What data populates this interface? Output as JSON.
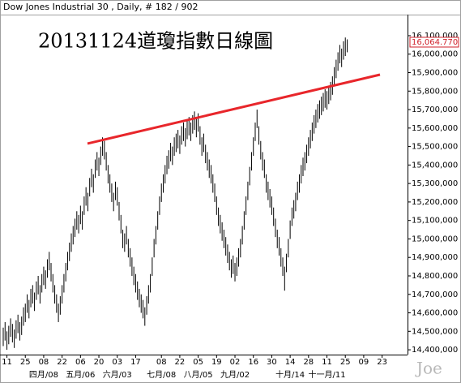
{
  "chart_data": {
    "type": "ohlc",
    "header": "Dow Jones Industrial 30 , Daily, # 182 / 902",
    "title": "20131124道瓊指數日線圖",
    "watermark": "Joe",
    "color": "#000000",
    "ylim": [
      14374000,
      16214000
    ],
    "yticks": [
      {
        "value": 16100000,
        "label": "16,100,000"
      },
      {
        "value": 16000000,
        "label": "16,000,000"
      },
      {
        "value": 15900000,
        "label": "15,900,000"
      },
      {
        "value": 15800000,
        "label": "15,800,000"
      },
      {
        "value": 15700000,
        "label": "15,700,000"
      },
      {
        "value": 15600000,
        "label": "15,600,000"
      },
      {
        "value": 15500000,
        "label": "15,500,000"
      },
      {
        "value": 15400000,
        "label": "15,400,000"
      },
      {
        "value": 15300000,
        "label": "15,300,000"
      },
      {
        "value": 15200000,
        "label": "15,200,000"
      },
      {
        "value": 15100000,
        "label": "15,100,000"
      },
      {
        "value": 15000000,
        "label": "15,000,000"
      },
      {
        "value": 14900000,
        "label": "14,900,000"
      },
      {
        "value": 14800000,
        "label": "14,800,000"
      },
      {
        "value": 14700000,
        "label": "14,700,000"
      },
      {
        "value": 14600000,
        "label": "14,600,000"
      },
      {
        "value": 14500000,
        "label": "14,500,000"
      },
      {
        "value": 14400000,
        "label": "14,400,000"
      }
    ],
    "last_price": {
      "value": 16064770,
      "label": "16,064.770",
      "color": "#d0202a"
    },
    "trendline": {
      "color": "#e8262b",
      "values": [
        15516000,
        15889000
      ]
    },
    "categories": [
      null,
      null,
      "11",
      null,
      null,
      null,
      null,
      null,
      null,
      null,
      null,
      null,
      "25",
      null,
      null,
      null,
      null,
      null,
      null,
      null,
      null,
      null,
      "08",
      null,
      null,
      null,
      null,
      null,
      null,
      null,
      null,
      null,
      "22",
      null,
      null,
      null,
      null,
      null,
      null,
      null,
      null,
      null,
      "06",
      null,
      null,
      null,
      null,
      null,
      null,
      null,
      null,
      null,
      "20",
      null,
      null,
      null,
      null,
      null,
      null,
      null,
      null,
      null,
      "03",
      null,
      null,
      null,
      null,
      null,
      null,
      null,
      null,
      null,
      "17",
      null,
      null,
      null,
      null,
      null,
      null,
      null,
      null,
      null,
      null,
      null,
      null,
      null,
      "08",
      null,
      null,
      null,
      null,
      null,
      null,
      null,
      null,
      null,
      "22",
      null,
      null,
      null,
      null,
      null,
      null,
      null,
      null,
      null,
      "05",
      null,
      null,
      null,
      null,
      null,
      null,
      null,
      null,
      null,
      "19",
      null,
      null,
      null,
      null,
      null,
      null,
      null,
      null,
      null,
      "02",
      null,
      null,
      null,
      null,
      null,
      null,
      null,
      null,
      null,
      "16",
      null,
      null,
      null,
      null,
      null,
      null,
      null,
      null,
      null,
      "30",
      null,
      null,
      null,
      null,
      null,
      null,
      null,
      null,
      null,
      "14",
      null,
      null,
      null,
      null,
      null,
      null,
      null,
      null,
      null,
      "28",
      null,
      null,
      null,
      null,
      null,
      null,
      null,
      null,
      null,
      "11",
      null,
      null,
      null,
      null,
      null,
      null,
      null,
      null,
      null,
      "25",
      null,
      null,
      null,
      null,
      null,
      null,
      null,
      null,
      null,
      "09",
      null,
      null,
      null,
      null,
      null,
      null,
      null,
      null,
      null,
      "23",
      null
    ],
    "month_labels": [
      null,
      null,
      null,
      null,
      null,
      null,
      null,
      null,
      null,
      null,
      null,
      null,
      null,
      null,
      null,
      null,
      null,
      null,
      null,
      null,
      null,
      null,
      "四月/08",
      null,
      null,
      null,
      null,
      null,
      null,
      null,
      null,
      null,
      null,
      null,
      null,
      null,
      null,
      null,
      null,
      null,
      null,
      null,
      "五月/06",
      null,
      null,
      null,
      null,
      null,
      null,
      null,
      null,
      null,
      null,
      null,
      null,
      null,
      null,
      null,
      null,
      null,
      null,
      null,
      "六月/03",
      null,
      null,
      null,
      null,
      null,
      null,
      null,
      null,
      null,
      null,
      null,
      null,
      null,
      null,
      null,
      null,
      null,
      null,
      null,
      null,
      null,
      null,
      null,
      "七月/08",
      null,
      null,
      null,
      null,
      null,
      null,
      null,
      null,
      null,
      null,
      null,
      null,
      null,
      null,
      null,
      null,
      null,
      null,
      null,
      "八月/05",
      null,
      null,
      null,
      null,
      null,
      null,
      null,
      null,
      null,
      null,
      null,
      null,
      null,
      null,
      null,
      null,
      null,
      null,
      null,
      "九月/02",
      null,
      null,
      null,
      null,
      null,
      null,
      null,
      null,
      null,
      null,
      null,
      null,
      null,
      null,
      null,
      null,
      null,
      null,
      null,
      null,
      null,
      null,
      null,
      null,
      null,
      null,
      null,
      null,
      null,
      "十月/14",
      null,
      null,
      null,
      null,
      null,
      null,
      null,
      null,
      null,
      null,
      null,
      null,
      null,
      null,
      null,
      null,
      null,
      null,
      null,
      "十一月/11",
      null,
      null,
      null,
      null,
      null,
      null,
      null,
      null,
      null,
      null,
      null,
      null,
      null,
      null,
      null,
      null,
      null,
      null,
      null,
      null,
      null,
      null,
      null,
      null,
      null,
      null,
      null,
      null,
      null,
      null,
      null
    ],
    "high": [
      14520000,
      14550000,
      14500000,
      14530000,
      14570000,
      14540000,
      14510000,
      14560000,
      14590000,
      14550000,
      14580000,
      14630000,
      14650000,
      14700000,
      14670000,
      14730000,
      14750000,
      14710000,
      14770000,
      14800000,
      14750000,
      14810000,
      14850000,
      14830000,
      14890000,
      14930000,
      14870000,
      14810000,
      14750000,
      14700000,
      14650000,
      14690000,
      14750000,
      14810000,
      14870000,
      14930000,
      14980000,
      15030000,
      15070000,
      15110000,
      15150000,
      15130000,
      15180000,
      15150000,
      15230000,
      15280000,
      15250000,
      15330000,
      15380000,
      15350000,
      15430000,
      15470000,
      15440000,
      15500000,
      15550000,
      15530000,
      15470000,
      15400000,
      15350000,
      15300000,
      15250000,
      15310000,
      15280000,
      15200000,
      15130000,
      15050000,
      15030000,
      15070000,
      15000000,
      14950000,
      14900000,
      14850000,
      14810000,
      14770000,
      14730000,
      14700000,
      14670000,
      14630000,
      14690000,
      14750000,
      14810000,
      14900000,
      15000000,
      15070000,
      15150000,
      15230000,
      15300000,
      15350000,
      15400000,
      15450000,
      15480000,
      15520000,
      15500000,
      15550000,
      15570000,
      15590000,
      15560000,
      15610000,
      15630000,
      15600000,
      15640000,
      15660000,
      15630000,
      15670000,
      15690000,
      15650000,
      15680000,
      15610000,
      15550000,
      15570000,
      15510000,
      15470000,
      15430000,
      15400000,
      15350000,
      15300000,
      15230000,
      15170000,
      15130000,
      15090000,
      15050000,
      15010000,
      14970000,
      14930000,
      14890000,
      14910000,
      14870000,
      14900000,
      14950000,
      15000000,
      15070000,
      15150000,
      15230000,
      15310000,
      15390000,
      15470000,
      15550000,
      15630000,
      15700000,
      15610000,
      15530000,
      15470000,
      15430000,
      15350000,
      15310000,
      15270000,
      15230000,
      15170000,
      15110000,
      15050000,
      15010000,
      14950000,
      14900000,
      14850000,
      14920000,
      15000000,
      15100000,
      15170000,
      15210000,
      15250000,
      15310000,
      15350000,
      15400000,
      15440000,
      15470000,
      15510000,
      15550000,
      15590000,
      15630000,
      15670000,
      15700000,
      15730000,
      15750000,
      15770000,
      15790000,
      15810000,
      15800000,
      15830000,
      15850000,
      15880000,
      15930000,
      15970000,
      16010000,
      16050000,
      16030000,
      16070000,
      16090000,
      16080000,
      null,
      null,
      null,
      null,
      null,
      null,
      null,
      null,
      null,
      null,
      null,
      null,
      null,
      null,
      null,
      null,
      null,
      null,
      null,
      null
    ],
    "low": [
      14420000,
      14450000,
      14400000,
      14430000,
      14470000,
      14440000,
      14410000,
      14460000,
      14490000,
      14450000,
      14480000,
      14530000,
      14550000,
      14600000,
      14570000,
      14630000,
      14650000,
      14610000,
      14670000,
      14700000,
      14650000,
      14710000,
      14750000,
      14730000,
      14790000,
      14830000,
      14770000,
      14710000,
      14650000,
      14600000,
      14550000,
      14590000,
      14650000,
      14710000,
      14770000,
      14830000,
      14880000,
      14930000,
      14970000,
      15010000,
      15050000,
      15030000,
      15080000,
      15050000,
      15130000,
      15180000,
      15150000,
      15230000,
      15280000,
      15250000,
      15330000,
      15370000,
      15340000,
      15400000,
      15450000,
      15430000,
      15370000,
      15300000,
      15250000,
      15200000,
      15150000,
      15210000,
      15180000,
      15100000,
      15030000,
      14950000,
      14930000,
      14970000,
      14900000,
      14850000,
      14800000,
      14750000,
      14710000,
      14670000,
      14630000,
      14600000,
      14570000,
      14530000,
      14590000,
      14650000,
      14710000,
      14800000,
      14900000,
      14970000,
      15050000,
      15130000,
      15200000,
      15250000,
      15300000,
      15350000,
      15380000,
      15420000,
      15400000,
      15450000,
      15470000,
      15490000,
      15460000,
      15510000,
      15530000,
      15500000,
      15540000,
      15560000,
      15530000,
      15570000,
      15590000,
      15550000,
      15580000,
      15510000,
      15450000,
      15470000,
      15410000,
      15370000,
      15330000,
      15300000,
      15250000,
      15200000,
      15130000,
      15070000,
      15030000,
      14990000,
      14950000,
      14910000,
      14870000,
      14830000,
      14790000,
      14810000,
      14770000,
      14800000,
      14850000,
      14900000,
      14970000,
      15050000,
      15130000,
      15210000,
      15290000,
      15370000,
      15450000,
      15530000,
      15600000,
      15510000,
      15430000,
      15370000,
      15330000,
      15250000,
      15210000,
      15170000,
      15130000,
      15070000,
      15010000,
      14950000,
      14910000,
      14850000,
      14800000,
      14720000,
      14820000,
      14900000,
      15000000,
      15070000,
      15110000,
      15150000,
      15210000,
      15250000,
      15300000,
      15340000,
      15370000,
      15410000,
      15450000,
      15490000,
      15530000,
      15570000,
      15600000,
      15630000,
      15650000,
      15670000,
      15690000,
      15710000,
      15700000,
      15730000,
      15750000,
      15780000,
      15830000,
      15870000,
      15910000,
      15950000,
      15930000,
      15970000,
      15990000,
      16010000,
      null,
      null,
      null,
      null,
      null,
      null,
      null,
      null,
      null,
      null,
      null,
      null,
      null,
      null,
      null,
      null,
      null,
      null,
      null,
      null
    ]
  }
}
